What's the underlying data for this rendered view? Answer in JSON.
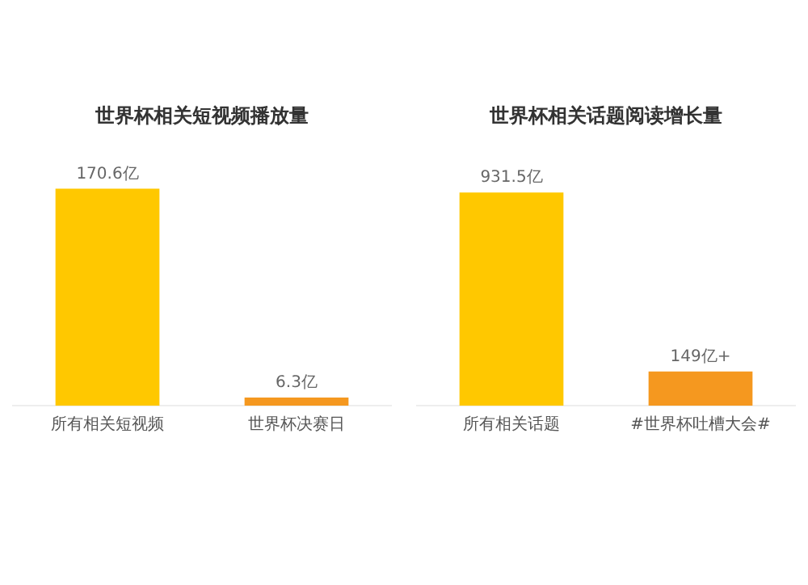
{
  "chart_data": [
    {
      "type": "bar",
      "title": "世界杯相关短视频播放量",
      "categories": [
        "所有相关短视频",
        "世界杯决赛日"
      ],
      "values": [
        170.6,
        6.3
      ],
      "colors": [
        "#ffc800",
        "#f5981f"
      ],
      "value_labels": [
        "170.6亿",
        "6.3亿"
      ],
      "grid": false,
      "legend": false
    },
    {
      "type": "bar",
      "title": "世界杯相关话题阅读增长量",
      "categories": [
        "所有相关话题",
        "#世界杯吐槽大会#"
      ],
      "values": [
        931.5,
        149
      ],
      "colors": [
        "#ffc800",
        "#f5981f"
      ],
      "value_labels": [
        "931.5亿",
        "149亿+"
      ],
      "grid": false,
      "legend": false
    }
  ]
}
